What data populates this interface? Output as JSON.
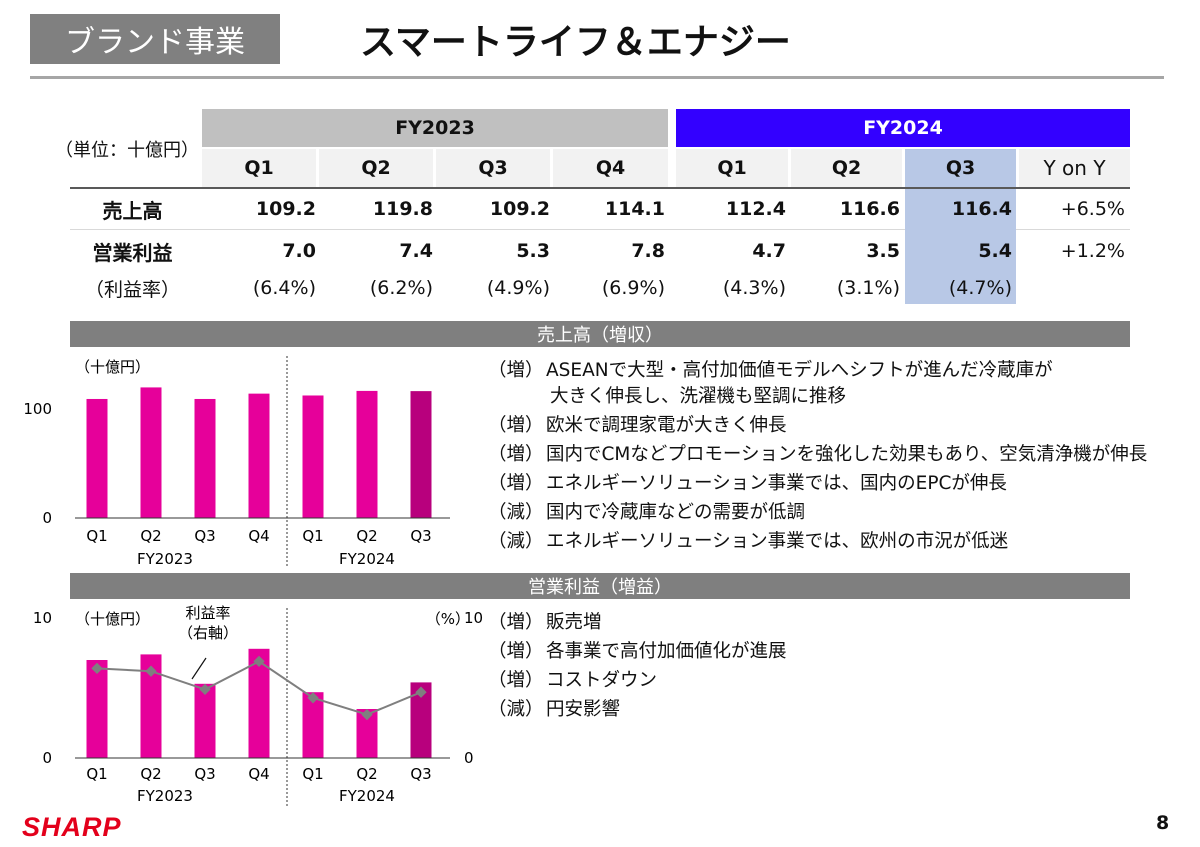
{
  "header": {
    "section_tag": "ブランド事業",
    "title": "スマートライフ＆エナジー"
  },
  "table": {
    "unit_label": "（単位：十億円）",
    "fy2023_label": "FY2023",
    "fy2024_label": "FY2024",
    "quarters_2023": [
      "Q1",
      "Q2",
      "Q3",
      "Q4"
    ],
    "quarters_2024": [
      "Q1",
      "Q2",
      "Q3"
    ],
    "yoy_label": "Y on Y",
    "rows": [
      {
        "label": "売上高",
        "fy2023": [
          "109.2",
          "119.8",
          "109.2",
          "114.1"
        ],
        "fy2024": [
          "112.4",
          "116.6",
          "116.4"
        ],
        "yoy": "+6.5%"
      },
      {
        "label": "営業利益",
        "fy2023": [
          "7.0",
          "7.4",
          "5.3",
          "7.8"
        ],
        "fy2024": [
          "4.7",
          "3.5",
          "5.4"
        ],
        "yoy": "+1.2%"
      },
      {
        "label": "（利益率）",
        "fy2023": [
          "(6.4%)",
          "(6.2%)",
          "(4.9%)",
          "(6.9%)"
        ],
        "fy2024": [
          "(4.3%)",
          "(3.1%)",
          "(4.7%)"
        ],
        "yoy": ""
      }
    ]
  },
  "sales": {
    "section_title": "売上高（増収）",
    "notes": [
      {
        "tag": "（増）",
        "text": "ASEANで大型・高付加価値モデルへシフトが進んだ冷蔵庫が",
        "cont": "大きく伸長し、洗濯機も堅調に推移"
      },
      {
        "tag": "（増）",
        "text": "欧米で調理家電が大きく伸長"
      },
      {
        "tag": "（増）",
        "text": "国内でCMなどプロモーションを強化した効果もあり、空気清浄機が伸長"
      },
      {
        "tag": "（増）",
        "text": "エネルギーソリューション事業では、国内のEPCが伸長"
      },
      {
        "tag": "（減）",
        "text": "国内で冷蔵庫などの需要が低調"
      },
      {
        "tag": "（減）",
        "text": "エネルギーソリューション事業では、欧州の市況が低迷"
      }
    ]
  },
  "profit": {
    "section_title": "営業利益（増益）",
    "notes": [
      {
        "tag": "（増）",
        "text": "販売増"
      },
      {
        "tag": "（増）",
        "text": "各事業で高付加価値化が進展"
      },
      {
        "tag": "（増）",
        "text": "コストダウン"
      },
      {
        "tag": "（減）",
        "text": "円安影響"
      }
    ]
  },
  "chart_data": [
    {
      "type": "bar",
      "unit": "（十億円）",
      "categories": [
        "Q1",
        "Q2",
        "Q3",
        "Q4",
        "Q1",
        "Q2",
        "Q3"
      ],
      "groups": [
        "FY2023",
        "FY2024"
      ],
      "values": [
        109.2,
        119.8,
        109.2,
        114.1,
        112.4,
        116.6,
        116.4
      ],
      "y_ticks": [
        "0",
        "100"
      ],
      "ylim": [
        0,
        130
      ],
      "colors": {
        "bar": "#e6009a",
        "highlight": "#b8007d"
      }
    },
    {
      "type": "bar+line",
      "unit_left": "（十億円）",
      "unit_right": "（%）",
      "categories": [
        "Q1",
        "Q2",
        "Q3",
        "Q4",
        "Q1",
        "Q2",
        "Q3"
      ],
      "groups": [
        "FY2023",
        "FY2024"
      ],
      "values": [
        7.0,
        7.4,
        5.3,
        7.8,
        4.7,
        3.5,
        5.4
      ],
      "margin_pct": [
        6.4,
        6.2,
        4.9,
        6.9,
        4.3,
        3.1,
        4.7
      ],
      "line_label": [
        "利益率",
        "（右軸）"
      ],
      "left_ticks": [
        "0",
        "10"
      ],
      "right_ticks": [
        "0",
        "10"
      ],
      "ylim": [
        0,
        10
      ],
      "y2lim": [
        0,
        10
      ],
      "colors": {
        "bar": "#e6009a",
        "highlight": "#b8007d",
        "line": "#7f7f7f"
      }
    }
  ],
  "footer": {
    "logo": "SHARP",
    "page_number": "8"
  }
}
